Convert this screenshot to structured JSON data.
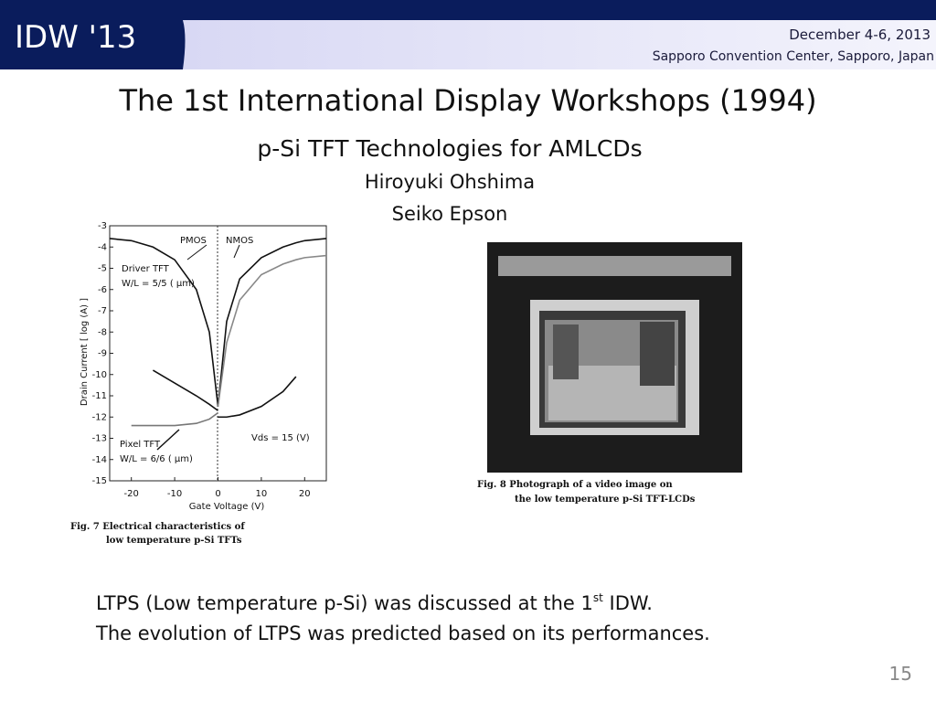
{
  "header": {
    "logo": "IDW '13",
    "date": "December 4-6, 2013",
    "venue": "Sapporo Convention Center, Sapporo, Japan"
  },
  "title": "The 1st International Display Workshops (1994)",
  "subtitle": "p-Si TFT Technologies for AMLCDs",
  "author": "Hiroyuki Ohshima",
  "affiliation": "Seiko Epson",
  "chart_data": {
    "type": "line",
    "x": [
      -25,
      -20,
      -15,
      -10,
      -5,
      -2,
      0,
      2,
      5,
      10,
      15,
      18,
      20,
      25
    ],
    "series": [
      {
        "color": "#111111",
        "values": [
          -3.6,
          -3.7,
          -4.0,
          -4.6,
          -6.0,
          -8.0,
          -11.5,
          null,
          null,
          null,
          null,
          null,
          null,
          null
        ]
      },
      {
        "color": "#111111",
        "values": [
          null,
          null,
          null,
          null,
          null,
          null,
          -11.5,
          -7.5,
          -5.5,
          -4.5,
          -4.0,
          -3.8,
          -3.7,
          -3.6
        ]
      },
      {
        "color": "#888888",
        "values": [
          null,
          null,
          null,
          null,
          null,
          null,
          -11.5,
          -8.5,
          -6.5,
          -5.3,
          -4.8,
          -4.6,
          -4.5,
          -4.4
        ]
      },
      {
        "color": "#111111",
        "values": [
          null,
          null,
          -9.8,
          -10.4,
          -11.0,
          -11.4,
          -11.7,
          null,
          null,
          null,
          null,
          null,
          null,
          null
        ]
      },
      {
        "color": "#111111",
        "values": [
          null,
          null,
          null,
          null,
          null,
          null,
          -12.0,
          -12.0,
          -11.9,
          -11.5,
          -10.8,
          -10.1,
          null,
          null
        ]
      },
      {
        "color": "#777777",
        "values": [
          null,
          -12.4,
          -12.4,
          -12.4,
          -12.3,
          -12.1,
          -11.8,
          null,
          null,
          null,
          null,
          null,
          null,
          null
        ]
      }
    ],
    "xlim": [
      -25,
      25
    ],
    "ylim": [
      -15,
      -3
    ],
    "xticks": [
      -20,
      -10,
      0,
      10,
      20
    ],
    "yticks": [
      -3,
      -4,
      -5,
      -6,
      -7,
      -8,
      -9,
      -10,
      -11,
      -12,
      -13,
      -14,
      -15
    ],
    "xlabel": "Gate Voltage   (V)",
    "ylabel": "Drain Current   [  log (A)  ]",
    "annotations": [
      "PMOS",
      "NMOS",
      "Driver TFT",
      "W/L = 5/5 ( μm)",
      "Pixel TFT",
      "W/L = 6/6 ( μm)",
      "Vds = 15 (V)"
    ],
    "caption": [
      "Fig. 7  Electrical characteristics of",
      "low temperature p-Si TFTs"
    ]
  },
  "figure8": {
    "caption": [
      "Fig. 8  Photograph of a video image on",
      "the low temperature p-Si TFT-LCDs"
    ]
  },
  "body": {
    "line1": {
      "before": "LTPS (Low temperature p-Si) was discussed at the 1",
      "sup": "st",
      "after": " IDW."
    },
    "line2": "The evolution of LTPS was predicted based on its performances."
  },
  "page_number": "15"
}
